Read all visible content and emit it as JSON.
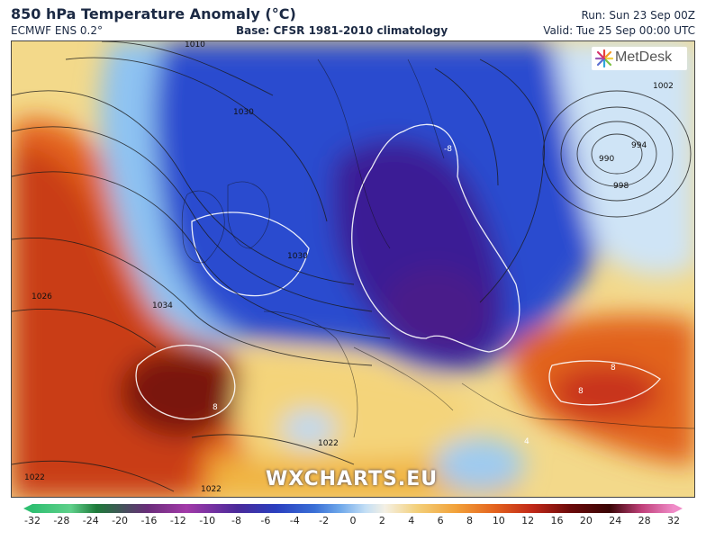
{
  "header": {
    "title": "850 hPa Temperature Anomaly (°C)",
    "model": "ECMWF ENS 0.2°",
    "base": "Base: CFSR 1981-2010 climatology",
    "run": "Run: Sun 23 Sep 00Z",
    "valid": "Valid: Tue 25 Sep 00:00 UTC"
  },
  "logo": {
    "text": "MetDesk"
  },
  "watermark": "WXCHARTS.EU",
  "isobar_labels": [
    "1030",
    "1034",
    "1026",
    "1030",
    "1022",
    "1022",
    "1022",
    "990",
    "994",
    "998",
    "1002",
    "1010"
  ],
  "anomaly_labels": [
    "-8",
    "8",
    "8",
    "8",
    "4"
  ],
  "colorbar": {
    "ticks": [
      "-32",
      "-28",
      "-24",
      "-20",
      "-16",
      "-12",
      "-10",
      "-8",
      "-6",
      "-4",
      "-2",
      "0",
      "2",
      "4",
      "6",
      "8",
      "10",
      "12",
      "16",
      "20",
      "24",
      "28",
      "32"
    ]
  },
  "colors": {
    "deep_cold": "#3a1a7a",
    "cold": "#1f3fbf",
    "cool": "#7fb2ee",
    "neutral": "#f5f0e6",
    "warm": "#f2c14a",
    "hot": "#d9471c",
    "extreme": "#5a0a0a"
  }
}
